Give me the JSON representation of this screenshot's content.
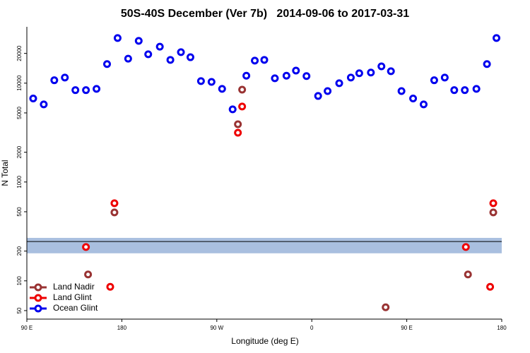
{
  "chart_data": {
    "type": "scatter",
    "title": "50S-40S December (Ver 7b)   2014-09-06 to 2017-03-31",
    "x_label": "Longitude (deg E)",
    "y_label": "N Total",
    "xlim": [
      90,
      540
    ],
    "xticks": [
      {
        "value": 90,
        "label": "90 E"
      },
      180,
      {
        "value": 270,
        "label": "90 W"
      },
      {
        "value": 360,
        "label": "0"
      },
      {
        "value": 450,
        "label": "90 E"
      },
      {
        "value": 540,
        "label": "180"
      }
    ],
    "ylim": [
      41,
      37150
    ],
    "log_y": true,
    "yticks": [
      50,
      100,
      200,
      500,
      1000,
      2000,
      5000,
      10000,
      20000
    ],
    "band": [
      190,
      272
    ],
    "hline": 250,
    "legend": "bottom-left",
    "series": [
      {
        "name": "Land Nadir",
        "color": "#993333",
        "x": [
          148,
          173,
          290,
          294,
          430,
          508,
          532
        ],
        "values": [
          116,
          492,
          3840,
          8600,
          54,
          116,
          492
        ]
      },
      {
        "name": "Land Glint",
        "color": "#ee0000",
        "x": [
          146,
          169,
          173,
          290,
          294,
          506,
          529,
          532
        ],
        "values": [
          220,
          87,
          610,
          3150,
          5800,
          220,
          87,
          610
        ]
      },
      {
        "name": "Ocean Glint",
        "color": "#0000ee",
        "x": [
          96,
          106,
          116,
          126,
          136,
          146,
          156,
          166,
          176,
          186,
          196,
          205,
          216,
          226,
          236,
          245,
          255,
          265,
          275,
          285,
          298,
          306,
          315,
          325,
          336,
          345,
          355,
          366,
          375,
          386,
          397,
          405,
          416,
          426,
          435,
          445,
          456,
          466,
          476,
          486,
          495,
          505,
          516,
          526,
          535
        ],
        "values": [
          7000,
          6100,
          10700,
          11400,
          8500,
          8500,
          8750,
          15600,
          28600,
          17700,
          26800,
          19600,
          23400,
          17200,
          20600,
          18300,
          10500,
          10300,
          8750,
          5430,
          11900,
          16900,
          17200,
          11200,
          11900,
          13400,
          11800,
          7420,
          8320,
          9980,
          11400,
          12600,
          12800,
          14800,
          13200,
          8320,
          7000,
          6100,
          10700,
          11400,
          8500,
          8500,
          8750,
          15600,
          28600
        ]
      }
    ]
  }
}
